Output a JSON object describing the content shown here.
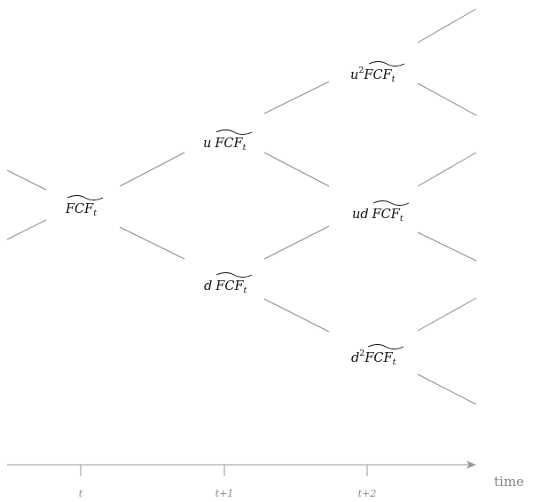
{
  "tree": {
    "nodes": [
      {
        "id": "n0",
        "multiplier": "",
        "exponent": "",
        "base": "FCF",
        "subscript": "t"
      },
      {
        "id": "u1",
        "multiplier": "u",
        "exponent": "",
        "base": "FCF",
        "subscript": "t"
      },
      {
        "id": "d1",
        "multiplier": "d",
        "exponent": "",
        "base": "FCF",
        "subscript": "t"
      },
      {
        "id": "uu",
        "multiplier": "u",
        "exponent": "2",
        "base": "FCF",
        "subscript": "t"
      },
      {
        "id": "ud",
        "multiplier": "ud",
        "exponent": "",
        "base": "FCF",
        "subscript": "t"
      },
      {
        "id": "dd",
        "multiplier": "d",
        "exponent": "2",
        "base": "FCF",
        "subscript": "t"
      }
    ]
  },
  "axis": {
    "title": "time",
    "ticks": [
      "t",
      "t+1",
      "t+2"
    ]
  },
  "colors": {
    "edge": "#8e8e8e",
    "axis": "#9a9a9a",
    "label": "#888888",
    "text": "#111111"
  }
}
